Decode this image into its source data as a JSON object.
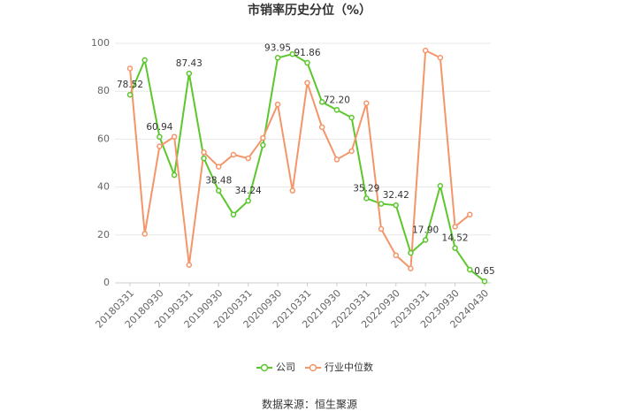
{
  "chart_data": {
    "type": "line",
    "title": "市销率历史分位（%）",
    "categories": [
      "20180331",
      null,
      "20180930",
      null,
      "20190331",
      null,
      "20190930",
      null,
      "20200331",
      null,
      "20200930",
      null,
      "20210331",
      null,
      "20210930",
      null,
      "20220331",
      null,
      "20220930",
      null,
      "20230331",
      null,
      "20230930",
      null,
      "20240430"
    ],
    "series": [
      {
        "name": "公司",
        "color": "#5cc72c",
        "values": [
          78.52,
          93,
          60.94,
          45,
          87.43,
          52,
          38.48,
          28.5,
          34.24,
          57.5,
          93.95,
          95.5,
          91.86,
          75.5,
          72.2,
          69,
          35.29,
          33,
          32.42,
          12.5,
          17.9,
          40.5,
          14.52,
          5.5,
          0.65
        ],
        "value_labels": [
          "78.52",
          null,
          "60.94",
          null,
          "87.43",
          null,
          "38.48",
          null,
          "34.24",
          null,
          "93.95",
          null,
          "91.86",
          null,
          "72.20",
          null,
          "35.29",
          null,
          "32.42",
          null,
          "17.90",
          null,
          "14.52",
          null,
          "0.65"
        ]
      },
      {
        "name": "行业中位数",
        "color": "#f4956a",
        "values": [
          89.5,
          20.5,
          57,
          61,
          7.5,
          54.5,
          48.5,
          53.5,
          52,
          60.5,
          74.5,
          38.5,
          83.5,
          65,
          51.5,
          55,
          75,
          22.5,
          11.5,
          6,
          97,
          94,
          23.5,
          28.5,
          null
        ]
      }
    ],
    "ylim": [
      0,
      100
    ],
    "yticks": [
      0,
      20,
      40,
      60,
      80,
      100
    ],
    "grid": true,
    "source": "数据来源：恒生聚源"
  }
}
